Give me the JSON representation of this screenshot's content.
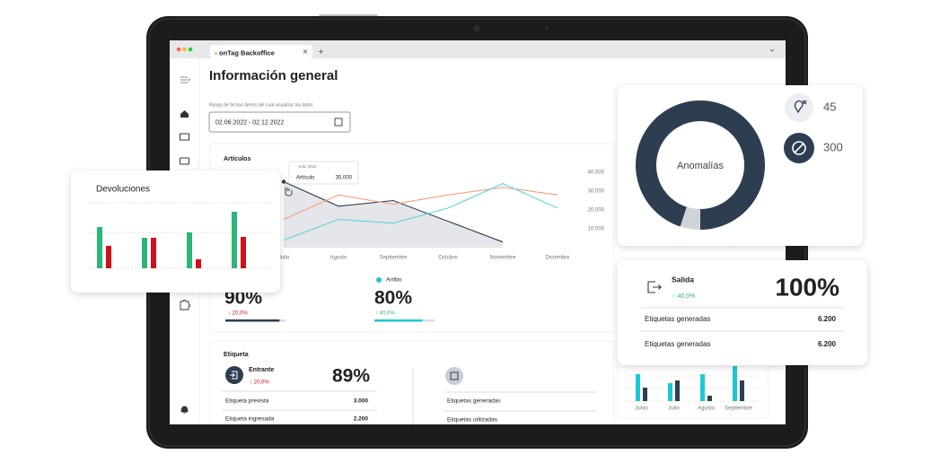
{
  "browser": {
    "tab": "onTag Backoffice"
  },
  "page": {
    "title": "Información general",
    "date_label": "Rango de fechas dentro del cual visualizar los datos",
    "date_value": "02.06.2022 - 02.12.2022"
  },
  "articles": {
    "type": "line",
    "title": "Artículos",
    "categories": [
      "Julio",
      "Agosto",
      "Septiembre",
      "Octubre",
      "Noviembre",
      "Diciembre"
    ],
    "series": [
      {
        "color": "#2d3e50",
        "values": [
          35000,
          22000,
          25000,
          14000,
          3000,
          null
        ]
      },
      {
        "color": "#f2a27c",
        "values": [
          15000,
          28000,
          23000,
          28000,
          32000,
          28000
        ]
      },
      {
        "color": "#5fd3dc",
        "values": [
          4000,
          15000,
          13000,
          21000,
          34000,
          21000
        ]
      }
    ],
    "ylim": [
      0,
      40000
    ],
    "yticks": [
      {
        "value": 10000,
        "label": "10,000"
      },
      {
        "value": 20000,
        "label": "20,000"
      },
      {
        "value": 30000,
        "label": "30,000"
      },
      {
        "value": 40000,
        "label": "40,000"
      }
    ],
    "area_color": "#e4e6e9",
    "tooltip": {
      "date": "Julio 2022",
      "label": "Artículo",
      "value": "35.000"
    }
  },
  "stats": {
    "first": {
      "value": 90,
      "label": "90%",
      "change": "↓ 20,0%",
      "color": "#2d3e50"
    },
    "arribo": {
      "name": "Arribo",
      "value": 80,
      "label": "80%",
      "change": "↑ 40,0%",
      "color": "#1cc8d6"
    }
  },
  "etiqueta": {
    "title": "Etiqueta",
    "name": "Entrante",
    "change": "↓ 20,0%",
    "percent": "89%",
    "rows": [
      [
        "Etiqueta prevista",
        "3.000"
      ],
      [
        "Etiqueta ingresada",
        "2.200"
      ]
    ],
    "right_rows": [
      "Etiquetas generadas",
      "Etiquetas utilizadas"
    ]
  },
  "devoluciones": {
    "type": "bar",
    "title": "Devoluciones",
    "series": [
      {
        "color": "#2bb67a",
        "values": [
          46,
          34,
          40,
          63
        ]
      },
      {
        "color": "#d0101b",
        "values": [
          25,
          34,
          10,
          35
        ]
      }
    ],
    "ylim": [
      0,
      80
    ]
  },
  "anomalias": {
    "type": "pie",
    "title": "Anomalías",
    "values": [
      95,
      5
    ],
    "colors": [
      "#2d3e50",
      "#cfd4d8"
    ],
    "items": [
      {
        "value": 45
      },
      {
        "value": 300
      }
    ]
  },
  "salida": {
    "name": "Salida",
    "change": "↑ 40,0%",
    "percent": "100%",
    "rows": [
      [
        "Etiquetas generadas",
        "6.200"
      ],
      [
        "Etiquetas generadas",
        "6.200"
      ]
    ]
  },
  "monthly": {
    "type": "bar",
    "categories": [
      "Junio",
      "Julio",
      "Agosto",
      "Septiembre"
    ],
    "series": [
      {
        "color": "#1cc8d6",
        "values": [
          30,
          20,
          30,
          39
        ]
      },
      {
        "color": "#2d3e50",
        "values": [
          15,
          23,
          6,
          23
        ]
      }
    ],
    "ylim": [
      0,
      40
    ]
  }
}
